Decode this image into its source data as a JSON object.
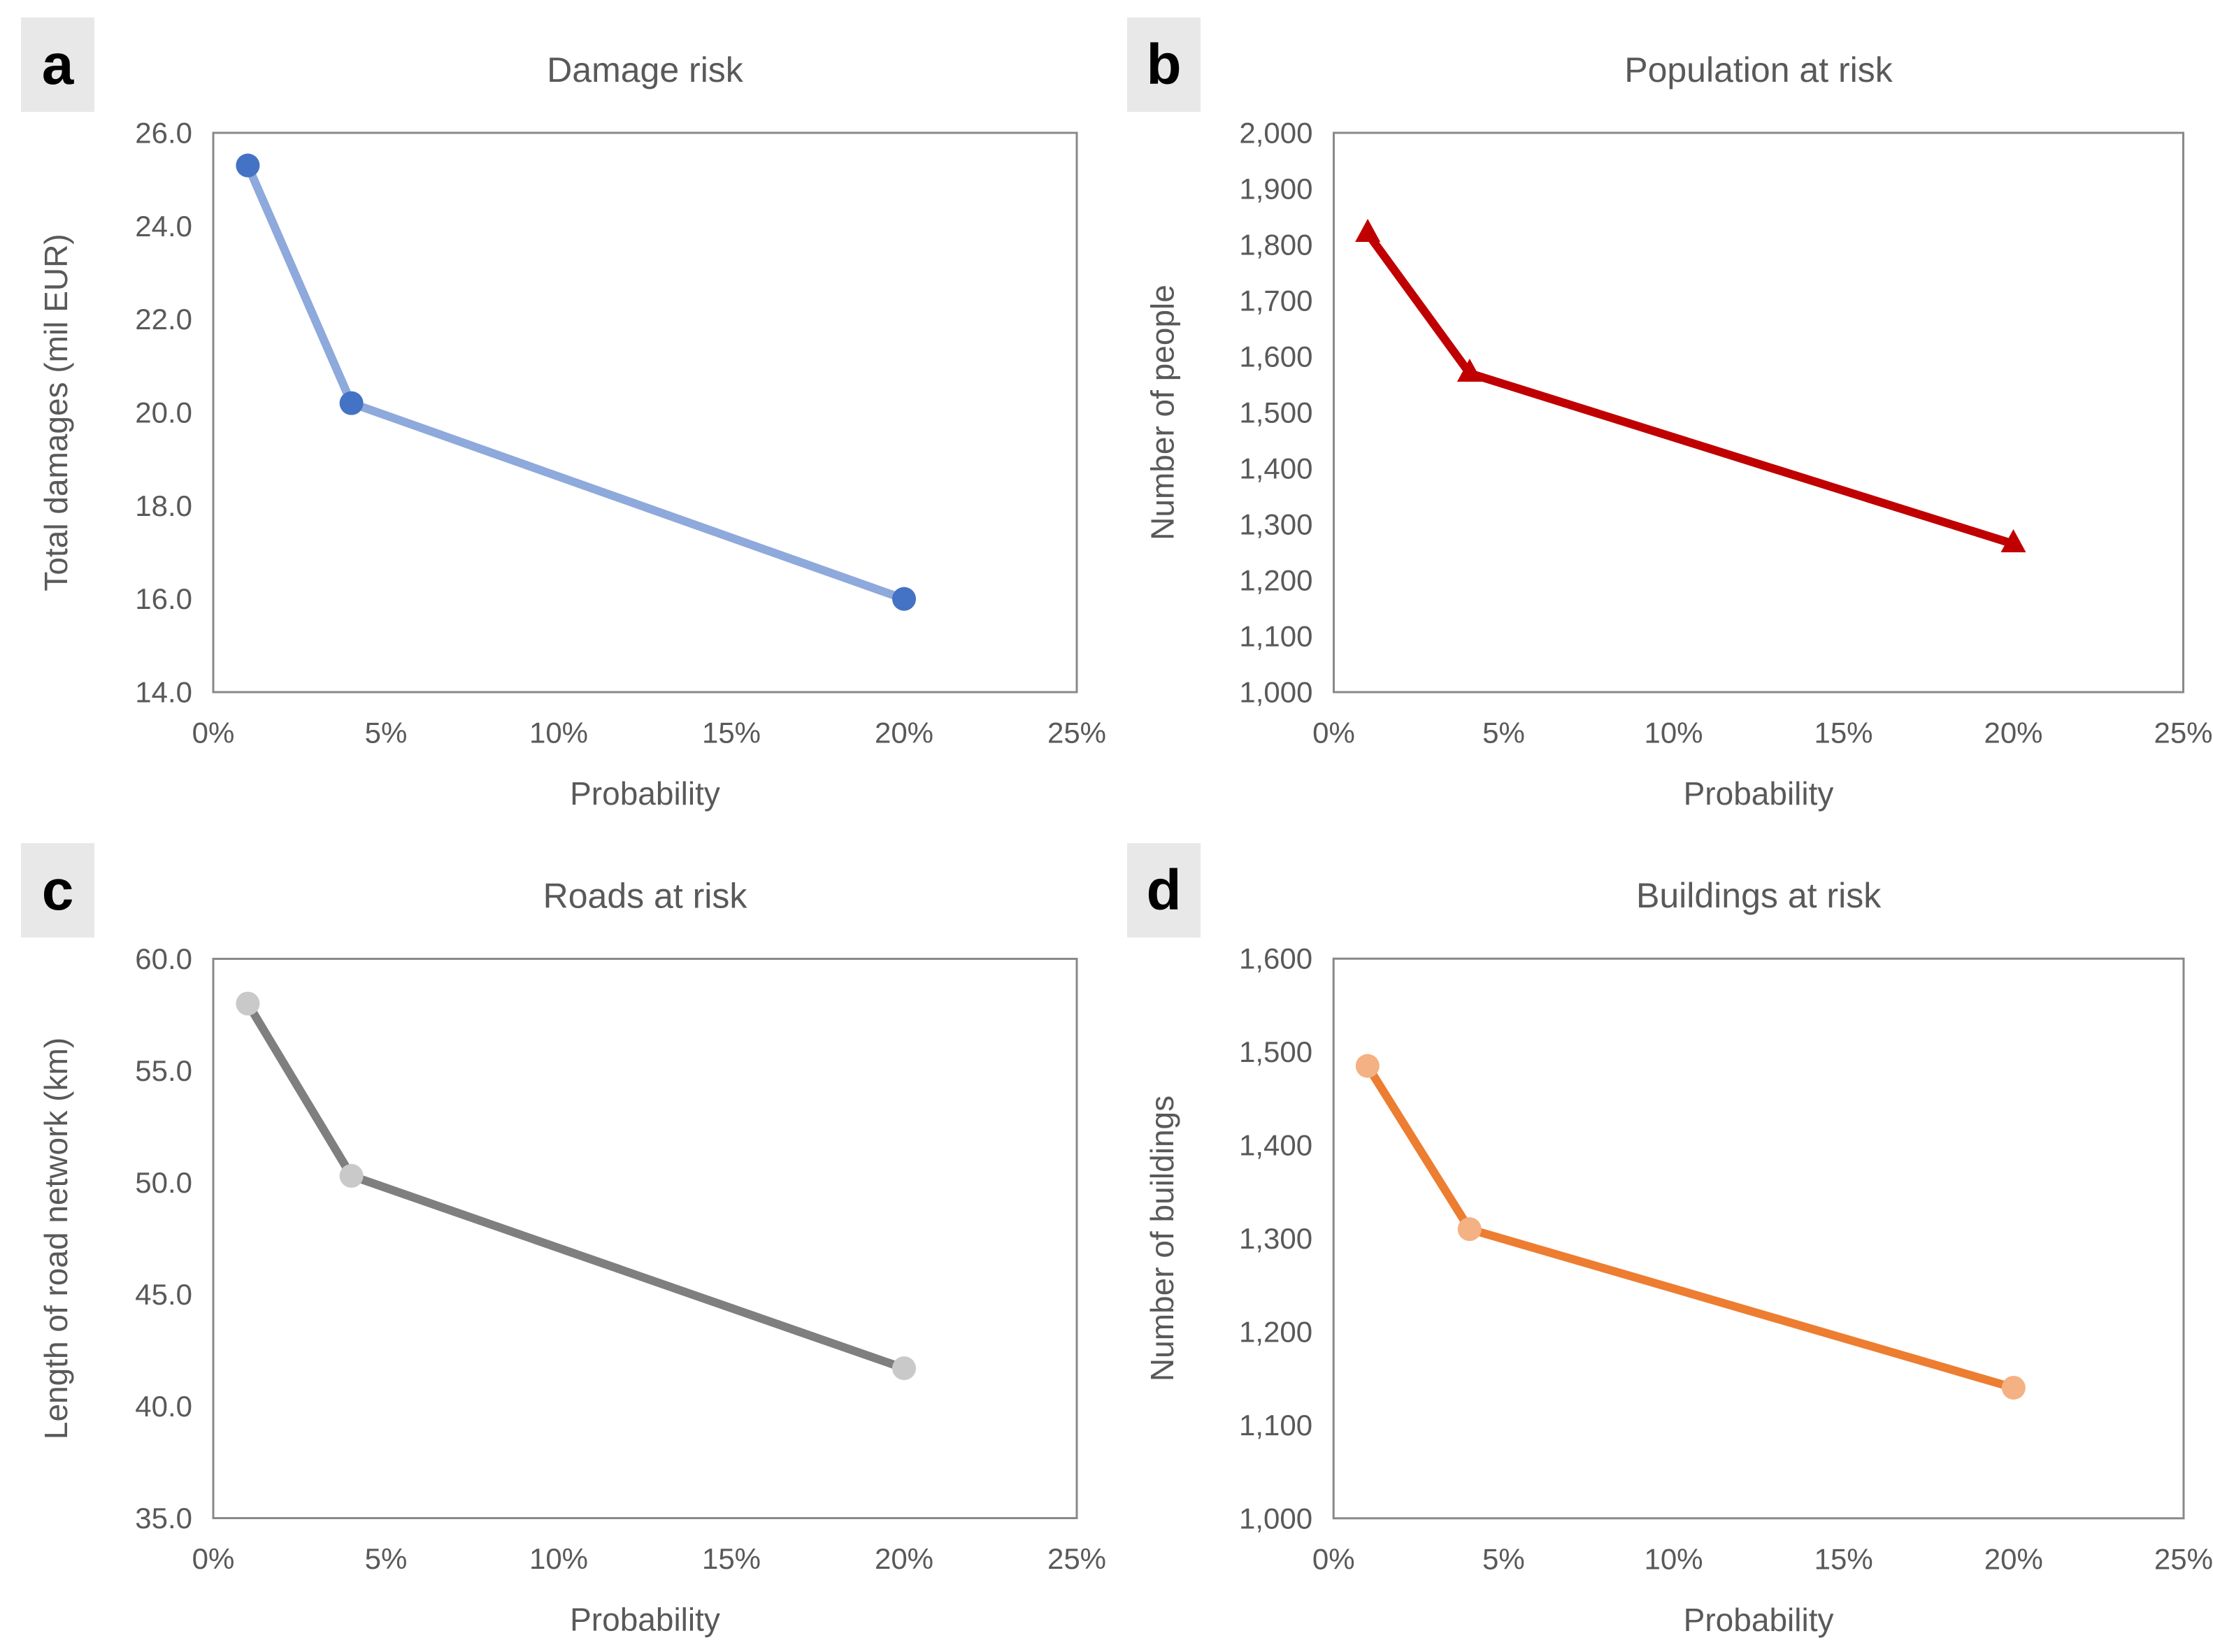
{
  "styles": {
    "background": "#FFFFFF",
    "text_color": "#595959",
    "axis_line_color": "#898989",
    "panel_label_bg": "#E8E8E8",
    "panel_label_color": "#000000"
  },
  "chart_data": [
    {
      "panel": "a",
      "type": "line",
      "title": "Damage risk",
      "xlabel": "Probability",
      "ylabel": "Total damages (mil EUR)",
      "x": [
        0.01,
        0.04,
        0.2
      ],
      "y": [
        25.3,
        20.2,
        16.0
      ],
      "xlim": [
        0,
        0.25
      ],
      "ylim": [
        14.0,
        26.0
      ],
      "xticks": [
        0,
        0.05,
        0.1,
        0.15,
        0.2,
        0.25
      ],
      "xtick_labels": [
        "0%",
        "5%",
        "10%",
        "15%",
        "20%",
        "25%"
      ],
      "ytick_step": 2.0,
      "ytick_decimals": 1,
      "ytick_thousands": false,
      "marker": "circle",
      "line_color": "#8EA9DB",
      "marker_color": "#4472C4",
      "grid": false,
      "legend": "none"
    },
    {
      "panel": "b",
      "type": "line",
      "title": "Population at risk",
      "xlabel": "Probability",
      "ylabel": "Number of people",
      "x": [
        0.01,
        0.04,
        0.2
      ],
      "y": [
        1820,
        1570,
        1265
      ],
      "xlim": [
        0,
        0.25
      ],
      "ylim": [
        1000,
        2000
      ],
      "xticks": [
        0,
        0.05,
        0.1,
        0.15,
        0.2,
        0.25
      ],
      "xtick_labels": [
        "0%",
        "5%",
        "10%",
        "15%",
        "20%",
        "25%"
      ],
      "ytick_step": 100,
      "ytick_decimals": 0,
      "ytick_thousands": true,
      "marker": "triangle",
      "line_color": "#C00000",
      "marker_color": "#C00000",
      "grid": false,
      "legend": "none"
    },
    {
      "panel": "c",
      "type": "line",
      "title": "Roads at risk",
      "xlabel": "Probability",
      "ylabel": "Length of road network (km)",
      "x": [
        0.01,
        0.04,
        0.2
      ],
      "y": [
        58.0,
        50.3,
        41.7
      ],
      "xlim": [
        0,
        0.25
      ],
      "ylim": [
        35.0,
        60.0
      ],
      "xticks": [
        0,
        0.05,
        0.1,
        0.15,
        0.2,
        0.25
      ],
      "xtick_labels": [
        "0%",
        "5%",
        "10%",
        "15%",
        "20%",
        "25%"
      ],
      "ytick_step": 5.0,
      "ytick_decimals": 1,
      "ytick_thousands": false,
      "marker": "circle",
      "line_color": "#7F7F7F",
      "marker_color": "#C9C9C9",
      "grid": false,
      "legend": "none"
    },
    {
      "panel": "d",
      "type": "line",
      "title": "Buildings at risk",
      "xlabel": "Probability",
      "ylabel": "Number of buildings",
      "x": [
        0.01,
        0.04,
        0.2
      ],
      "y": [
        1485,
        1310,
        1140
      ],
      "xlim": [
        0,
        0.25
      ],
      "ylim": [
        1000,
        1600
      ],
      "xticks": [
        0,
        0.05,
        0.1,
        0.15,
        0.2,
        0.25
      ],
      "xtick_labels": [
        "0%",
        "5%",
        "10%",
        "15%",
        "20%",
        "25%"
      ],
      "ytick_step": 100,
      "ytick_decimals": 0,
      "ytick_thousands": true,
      "marker": "circle",
      "line_color": "#ED7D31",
      "marker_color": "#F4B183",
      "grid": false,
      "legend": "none"
    }
  ]
}
